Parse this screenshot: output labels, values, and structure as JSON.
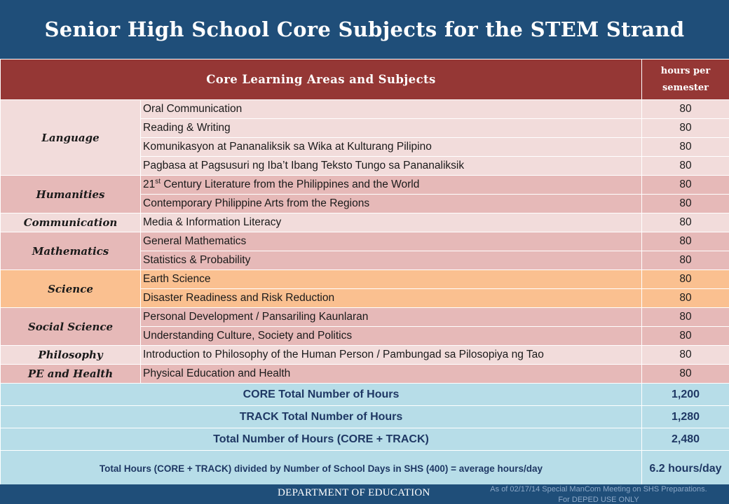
{
  "title": "Senior High School Core Subjects for the STEM Strand",
  "table": {
    "header_main": "Core Learning Areas and Subjects",
    "header_hours": "hours per semester",
    "groups": [
      {
        "area": "Language",
        "subjects": [
          {
            "name": "Oral Communication",
            "hours": "80"
          },
          {
            "name": "Reading & Writing",
            "hours": "80"
          },
          {
            "name": "Komunikasyon at Pananaliksik sa Wika at Kulturang Pilipino",
            "hours": "80"
          },
          {
            "name": "Pagbasa at Pagsusuri ng Iba’t Ibang Teksto Tungo sa Pananaliksik",
            "hours": "80"
          }
        ]
      },
      {
        "area": "Humanities",
        "subjects": [
          {
            "name_pre": "21",
            "name_sup": "st",
            "name_post": " Century Literature from the Philippines and the World",
            "hours": "80"
          },
          {
            "name": "Contemporary Philippine Arts from the Regions",
            "hours": "80"
          }
        ]
      },
      {
        "area": "Communication",
        "subjects": [
          {
            "name": "Media & Information Literacy",
            "hours": "80"
          }
        ]
      },
      {
        "area": "Mathematics",
        "subjects": [
          {
            "name": "General Mathematics",
            "hours": "80"
          },
          {
            "name": "Statistics & Probability",
            "hours": "80"
          }
        ]
      },
      {
        "area": "Science",
        "subjects": [
          {
            "name": "Earth Science",
            "hours": "80"
          },
          {
            "name": "Disaster Readiness and Risk Reduction",
            "hours": "80"
          }
        ]
      },
      {
        "area": "Social Science",
        "subjects": [
          {
            "name": "Personal Development / Pansariling Kaunlaran",
            "hours": "80"
          },
          {
            "name": "Understanding Culture, Society and Politics",
            "hours": "80"
          }
        ]
      },
      {
        "area": "Philosophy",
        "subjects": [
          {
            "name": "Introduction to Philosophy of the Human Person / Pambungad sa Pilosopiya ng Tao",
            "hours": "80"
          }
        ]
      },
      {
        "area": "PE and Health",
        "subjects": [
          {
            "name": "Physical Education and Health",
            "hours": "80"
          }
        ]
      }
    ],
    "totals": [
      {
        "label": "CORE Total Number of Hours",
        "value": "1,200"
      },
      {
        "label": "TRACK Total Number of Hours",
        "value": "1,280"
      },
      {
        "label": "Total Number of Hours (CORE + TRACK)",
        "value": "2,480"
      },
      {
        "label": "Total Hours (CORE + TRACK) divided by Number of School Days in SHS (400) =  average hours/day",
        "value": "6.2 hours/day"
      }
    ]
  },
  "footer": {
    "department": "DEPARTMENT OF EDUCATION",
    "note_line1": "As of 02/17/14 Special ManCom Meeting on SHS Preparations.",
    "note_line2": "For DEPED USE ONLY"
  },
  "colors": {
    "banner": "#1f4e79",
    "header": "#953735",
    "row_light": "#f2dcdb",
    "row_mid": "#e6b9b8",
    "row_science": "#fac090",
    "totals": "#b7dde8"
  }
}
